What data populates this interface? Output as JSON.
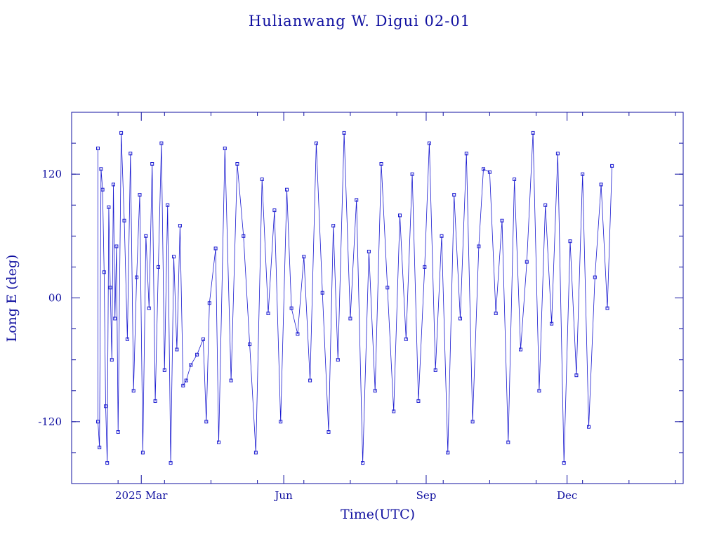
{
  "colors": {
    "ink": "#1010a0",
    "trace": "#1a1ad0",
    "background": "#ffffff"
  },
  "chart_data": {
    "type": "line",
    "title": "Hulianwang W. Digui 02-01",
    "xlabel": "Time(UTC)",
    "ylabel": "Long E (deg)",
    "xlim": [
      "2025-01-15",
      "2026-02-14"
    ],
    "ylim": [
      -180,
      180
    ],
    "x_ticks": [
      {
        "date": "2025-03-01",
        "label": "2025 Mar"
      },
      {
        "date": "2025-06-01",
        "label": "Jun"
      },
      {
        "date": "2025-09-01",
        "label": "Sep"
      },
      {
        "date": "2025-12-01",
        "label": "Dec"
      }
    ],
    "y_ticks": [
      {
        "value": 120,
        "label": "120"
      },
      {
        "value": 0,
        "label": "00"
      },
      {
        "value": -120,
        "label": "-120"
      }
    ],
    "grid": false,
    "marker": "square",
    "series": [
      {
        "points": [
          [
            "2025-02-01",
            145
          ],
          [
            "2025-02-01",
            -120
          ],
          [
            "2025-02-02",
            -145
          ],
          [
            "2025-02-03",
            125
          ],
          [
            "2025-02-04",
            105
          ],
          [
            "2025-02-05",
            25
          ],
          [
            "2025-02-06",
            -105
          ],
          [
            "2025-02-07",
            -160
          ],
          [
            "2025-02-08",
            88
          ],
          [
            "2025-02-09",
            10
          ],
          [
            "2025-02-10",
            -60
          ],
          [
            "2025-02-11",
            110
          ],
          [
            "2025-02-12",
            -20
          ],
          [
            "2025-02-13",
            50
          ],
          [
            "2025-02-14",
            -130
          ],
          [
            "2025-02-16",
            160
          ],
          [
            "2025-02-18",
            75
          ],
          [
            "2025-02-20",
            -40
          ],
          [
            "2025-02-22",
            140
          ],
          [
            "2025-02-24",
            -90
          ],
          [
            "2025-02-26",
            20
          ],
          [
            "2025-02-28",
            100
          ],
          [
            "2025-03-02",
            -150
          ],
          [
            "2025-03-04",
            60
          ],
          [
            "2025-03-06",
            -10
          ],
          [
            "2025-03-08",
            130
          ],
          [
            "2025-03-10",
            -100
          ],
          [
            "2025-03-12",
            30
          ],
          [
            "2025-03-14",
            150
          ],
          [
            "2025-03-16",
            -70
          ],
          [
            "2025-03-18",
            90
          ],
          [
            "2025-03-20",
            -160
          ],
          [
            "2025-03-22",
            40
          ],
          [
            "2025-03-24",
            -50
          ],
          [
            "2025-03-26",
            70
          ],
          [
            "2025-03-28",
            -85
          ],
          [
            "2025-03-30",
            -80
          ],
          [
            "2025-04-02",
            -65
          ],
          [
            "2025-04-06",
            -55
          ],
          [
            "2025-04-10",
            -40
          ],
          [
            "2025-04-12",
            -120
          ],
          [
            "2025-04-14",
            -5
          ],
          [
            "2025-04-18",
            48
          ],
          [
            "2025-04-20",
            -140
          ],
          [
            "2025-04-24",
            145
          ],
          [
            "2025-04-28",
            -80
          ],
          [
            "2025-05-02",
            130
          ],
          [
            "2025-05-06",
            60
          ],
          [
            "2025-05-10",
            -45
          ],
          [
            "2025-05-14",
            -150
          ],
          [
            "2025-05-18",
            115
          ],
          [
            "2025-05-22",
            -15
          ],
          [
            "2025-05-26",
            85
          ],
          [
            "2025-05-30",
            -120
          ],
          [
            "2025-06-03",
            105
          ],
          [
            "2025-06-06",
            -10
          ],
          [
            "2025-06-10",
            -35
          ],
          [
            "2025-06-14",
            40
          ],
          [
            "2025-06-18",
            -80
          ],
          [
            "2025-06-22",
            150
          ],
          [
            "2025-06-26",
            5
          ],
          [
            "2025-06-30",
            -130
          ],
          [
            "2025-07-03",
            70
          ],
          [
            "2025-07-06",
            -60
          ],
          [
            "2025-07-10",
            160
          ],
          [
            "2025-07-14",
            -20
          ],
          [
            "2025-07-18",
            95
          ],
          [
            "2025-07-22",
            -160
          ],
          [
            "2025-07-26",
            45
          ],
          [
            "2025-07-30",
            -90
          ],
          [
            "2025-08-03",
            130
          ],
          [
            "2025-08-07",
            10
          ],
          [
            "2025-08-11",
            -110
          ],
          [
            "2025-08-15",
            80
          ],
          [
            "2025-08-19",
            -40
          ],
          [
            "2025-08-23",
            120
          ],
          [
            "2025-08-27",
            -100
          ],
          [
            "2025-08-31",
            30
          ],
          [
            "2025-09-03",
            150
          ],
          [
            "2025-09-07",
            -70
          ],
          [
            "2025-09-11",
            60
          ],
          [
            "2025-09-15",
            -150
          ],
          [
            "2025-09-19",
            100
          ],
          [
            "2025-09-23",
            -20
          ],
          [
            "2025-09-27",
            140
          ],
          [
            "2025-10-01",
            -120
          ],
          [
            "2025-10-05",
            50
          ],
          [
            "2025-10-08",
            125
          ],
          [
            "2025-10-12",
            122
          ],
          [
            "2025-10-16",
            -15
          ],
          [
            "2025-10-20",
            75
          ],
          [
            "2025-10-24",
            -140
          ],
          [
            "2025-10-28",
            115
          ],
          [
            "2025-11-01",
            -50
          ],
          [
            "2025-11-05",
            35
          ],
          [
            "2025-11-09",
            160
          ],
          [
            "2025-11-13",
            -90
          ],
          [
            "2025-11-17",
            90
          ],
          [
            "2025-11-21",
            -25
          ],
          [
            "2025-11-25",
            140
          ],
          [
            "2025-11-29",
            -160
          ],
          [
            "2025-12-03",
            55
          ],
          [
            "2025-12-07",
            -75
          ],
          [
            "2025-12-11",
            120
          ],
          [
            "2025-12-15",
            -125
          ],
          [
            "2025-12-19",
            20
          ],
          [
            "2025-12-23",
            110
          ],
          [
            "2025-12-27",
            -10
          ],
          [
            "2025-12-30",
            128
          ]
        ]
      }
    ]
  }
}
